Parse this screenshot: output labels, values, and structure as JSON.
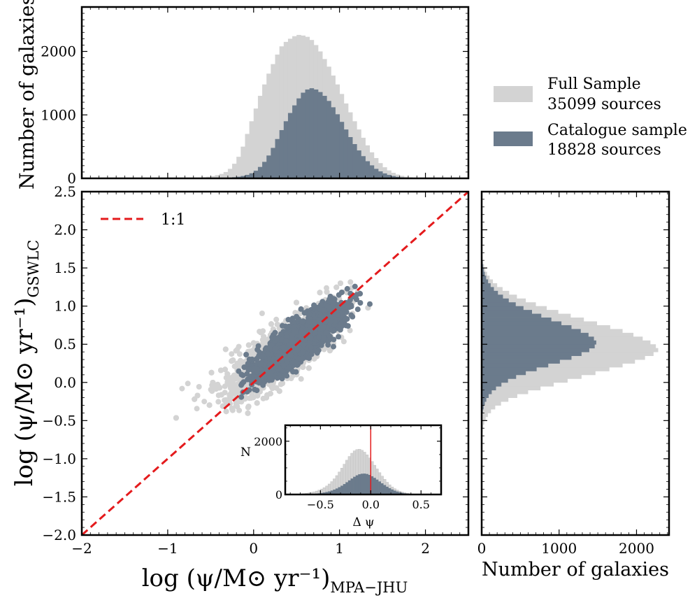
{
  "chart_data": [
    {
      "id": "top_hist",
      "type": "histogram",
      "ylabel": "Number of galaxies",
      "xlim": [
        -2.0,
        2.5
      ],
      "ylim": [
        0,
        2700
      ],
      "yticks": [
        0,
        1000,
        2000
      ],
      "bin_start": -2.0,
      "bin_width": 0.05,
      "series": [
        {
          "name": "Full Sample",
          "color": "#d3d3d3",
          "values": [
            0,
            0,
            0,
            0,
            0,
            0,
            0,
            0,
            0,
            0,
            0,
            0,
            0,
            0,
            0,
            0,
            0,
            0,
            0,
            0,
            0,
            0,
            1,
            2,
            3,
            5,
            8,
            12,
            18,
            26,
            36,
            50,
            70,
            100,
            150,
            230,
            340,
            500,
            700,
            900,
            1100,
            1300,
            1480,
            1650,
            1800,
            1950,
            2080,
            2150,
            2200,
            2240,
            2260,
            2250,
            2230,
            2180,
            2100,
            2000,
            1880,
            1760,
            1620,
            1480,
            1330,
            1180,
            1040,
            900,
            770,
            640,
            520,
            410,
            320,
            240,
            175,
            125,
            88,
            60,
            40,
            26,
            17,
            11,
            7,
            5,
            3,
            2,
            1,
            1,
            0,
            0,
            0,
            0,
            0,
            0
          ]
        },
        {
          "name": "Catalogue sample",
          "color": "#6b7b8c",
          "values": [
            0,
            0,
            0,
            0,
            0,
            0,
            0,
            0,
            0,
            0,
            0,
            0,
            0,
            0,
            0,
            0,
            0,
            0,
            0,
            0,
            0,
            0,
            0,
            0,
            0,
            0,
            0,
            1,
            1,
            2,
            3,
            4,
            6,
            8,
            12,
            18,
            26,
            38,
            55,
            80,
            120,
            180,
            260,
            360,
            480,
            620,
            760,
            900,
            1030,
            1150,
            1260,
            1350,
            1400,
            1420,
            1400,
            1360,
            1300,
            1220,
            1120,
            1010,
            890,
            770,
            650,
            540,
            440,
            350,
            270,
            205,
            150,
            110,
            78,
            54,
            37,
            25,
            16,
            10,
            6,
            4,
            2,
            1,
            1,
            0,
            0,
            0,
            0,
            0,
            0,
            0,
            0,
            0
          ]
        }
      ]
    },
    {
      "id": "scatter",
      "type": "scatter",
      "xlabel": "log (ψ/M⊙ yr⁻¹)",
      "xlabel_sub": "MPA−JHU",
      "ylabel": "log (ψ/M⊙ yr⁻¹)",
      "ylabel_sub": "GSWLC",
      "xlim": [
        -2.0,
        2.5
      ],
      "ylim": [
        -2.0,
        2.5
      ],
      "xticks": [
        -2,
        -1,
        0,
        1,
        2
      ],
      "yticks": [
        -2.0,
        -1.5,
        -1.0,
        -0.5,
        0.0,
        0.5,
        1.0,
        1.5,
        2.0,
        2.5
      ],
      "xtick_labels": [
        "−2",
        "−1",
        "0",
        "1",
        "2"
      ],
      "ytick_labels": [
        "−2.0",
        "−1.5",
        "−1.0",
        "−0.5",
        "0.0",
        "0.5",
        "1.0",
        "1.5",
        "2.0",
        "2.5"
      ],
      "reference_line": {
        "label": "1:1",
        "from": [
          -2.0,
          -2.0
        ],
        "to": [
          2.5,
          2.5
        ],
        "color": "#e41a1c"
      },
      "series": [
        {
          "name": "Full Sample",
          "color": "#d3d3d3",
          "n_points": 35099,
          "relation": {
            "slope": 0.85,
            "intercept": 0.1,
            "scatter": 0.32,
            "x_mean": 0.35,
            "x_sd": 0.55
          }
        },
        {
          "name": "Catalogue sample",
          "color": "#6b7b8c",
          "n_points": 18828,
          "relation": {
            "slope": 0.8,
            "intercept": 0.12,
            "scatter": 0.22,
            "x_mean": 0.55,
            "x_sd": 0.45
          }
        }
      ]
    },
    {
      "id": "right_hist",
      "type": "histogram",
      "orientation": "horizontal",
      "xlabel": "Number of galaxies",
      "xlim": [
        0,
        2420
      ],
      "ylim": [
        -2.0,
        2.5
      ],
      "xticks": [
        0,
        1000,
        2000
      ],
      "bin_start": -2.0,
      "bin_width": 0.05,
      "series": [
        {
          "name": "Full Sample",
          "color": "#d3d3d3",
          "values": [
            0,
            0,
            0,
            0,
            0,
            0,
            0,
            0,
            0,
            0,
            0,
            0,
            0,
            0,
            0,
            0,
            0,
            0,
            0,
            0,
            0,
            0,
            0,
            1,
            2,
            4,
            7,
            12,
            20,
            33,
            52,
            80,
            120,
            175,
            250,
            345,
            460,
            600,
            760,
            930,
            1110,
            1290,
            1470,
            1650,
            1820,
            1980,
            2110,
            2220,
            2280,
            2250,
            2180,
            2080,
            1960,
            1820,
            1660,
            1490,
            1320,
            1150,
            990,
            840,
            700,
            570,
            455,
            355,
            270,
            200,
            145,
            102,
            70,
            47,
            31,
            20,
            13,
            8,
            5,
            3,
            2,
            1,
            1,
            0,
            0,
            0,
            0,
            0,
            0,
            0,
            0,
            0,
            0,
            0
          ]
        },
        {
          "name": "Catalogue sample",
          "color": "#6b7b8c",
          "values": [
            0,
            0,
            0,
            0,
            0,
            0,
            0,
            0,
            0,
            0,
            0,
            0,
            0,
            0,
            0,
            0,
            0,
            0,
            0,
            0,
            0,
            0,
            0,
            0,
            0,
            0,
            0,
            1,
            2,
            3,
            5,
            9,
            15,
            25,
            40,
            60,
            90,
            130,
            185,
            255,
            340,
            445,
            570,
            710,
            860,
            1010,
            1160,
            1290,
            1390,
            1460,
            1480,
            1450,
            1380,
            1280,
            1160,
            1030,
            900,
            770,
            650,
            540,
            440,
            350,
            275,
            210,
            158,
            116,
            83,
            58,
            40,
            27,
            18,
            12,
            8,
            5,
            3,
            2,
            1,
            1,
            0,
            0,
            0,
            0,
            0,
            0,
            0,
            0,
            0,
            0,
            0,
            0
          ]
        }
      ]
    },
    {
      "id": "inset",
      "type": "histogram",
      "xlabel": "Δ ψ",
      "ylabel": "N",
      "xlim": [
        -0.85,
        0.7
      ],
      "ylim": [
        0,
        2600
      ],
      "xticks": [
        -0.5,
        0.0,
        0.5
      ],
      "xtick_labels": [
        "−0.5",
        "0.0",
        "0.5"
      ],
      "yticks": [
        0,
        2000
      ],
      "vline": {
        "x": 0.0,
        "color": "#e41a1c"
      },
      "bin_start": -0.85,
      "bin_width": 0.025,
      "series": [
        {
          "name": "Full Sample",
          "color": "#d3d3d3",
          "values": [
            3,
            5,
            8,
            11,
            15,
            20,
            27,
            36,
            48,
            62,
            80,
            102,
            130,
            165,
            207,
            258,
            320,
            395,
            485,
            590,
            710,
            845,
            990,
            1140,
            1290,
            1430,
            1550,
            1640,
            1690,
            1700,
            1660,
            1590,
            1490,
            1370,
            1240,
            1100,
            960,
            820,
            690,
            570,
            460,
            365,
            285,
            220,
            167,
            125,
            92,
            67,
            48,
            34,
            24,
            17,
            12,
            8,
            6,
            4,
            3,
            2,
            1,
            1,
            1,
            1
          ]
        },
        {
          "name": "Catalogue sample",
          "color": "#6b7b8c",
          "values": [
            0,
            1,
            1,
            2,
            3,
            4,
            6,
            8,
            11,
            15,
            20,
            26,
            34,
            45,
            58,
            74,
            94,
            118,
            148,
            184,
            226,
            275,
            330,
            392,
            460,
            530,
            600,
            665,
            720,
            760,
            780,
            785,
            770,
            735,
            685,
            625,
            560,
            490,
            420,
            355,
            292,
            237,
            188,
            146,
            111,
            83,
            61,
            44,
            31,
            22,
            15,
            10,
            7,
            5,
            3,
            2,
            1,
            1,
            1,
            0,
            0,
            0
          ]
        }
      ]
    }
  ],
  "legend": {
    "items": [
      {
        "line1": "Full Sample",
        "line2": "35099 sources",
        "color": "#d3d3d3"
      },
      {
        "line1": "Catalogue sample",
        "line2": "18828 sources",
        "color": "#6b7b8c"
      }
    ]
  },
  "labels": {
    "top_ylabel": "Number of galaxies",
    "right_xlabel": "Number of galaxies",
    "ref_label": "1:1",
    "inset_ylabel": "N",
    "inset_xlabel": "Δ ψ",
    "main_xlabel": "log (ψ/M⊙ yr⁻¹)",
    "main_xlabel_sub": "MPA−JHU",
    "main_ylabel": "log (ψ/M⊙ yr⁻¹)",
    "main_ylabel_sub": "GSWLC"
  }
}
